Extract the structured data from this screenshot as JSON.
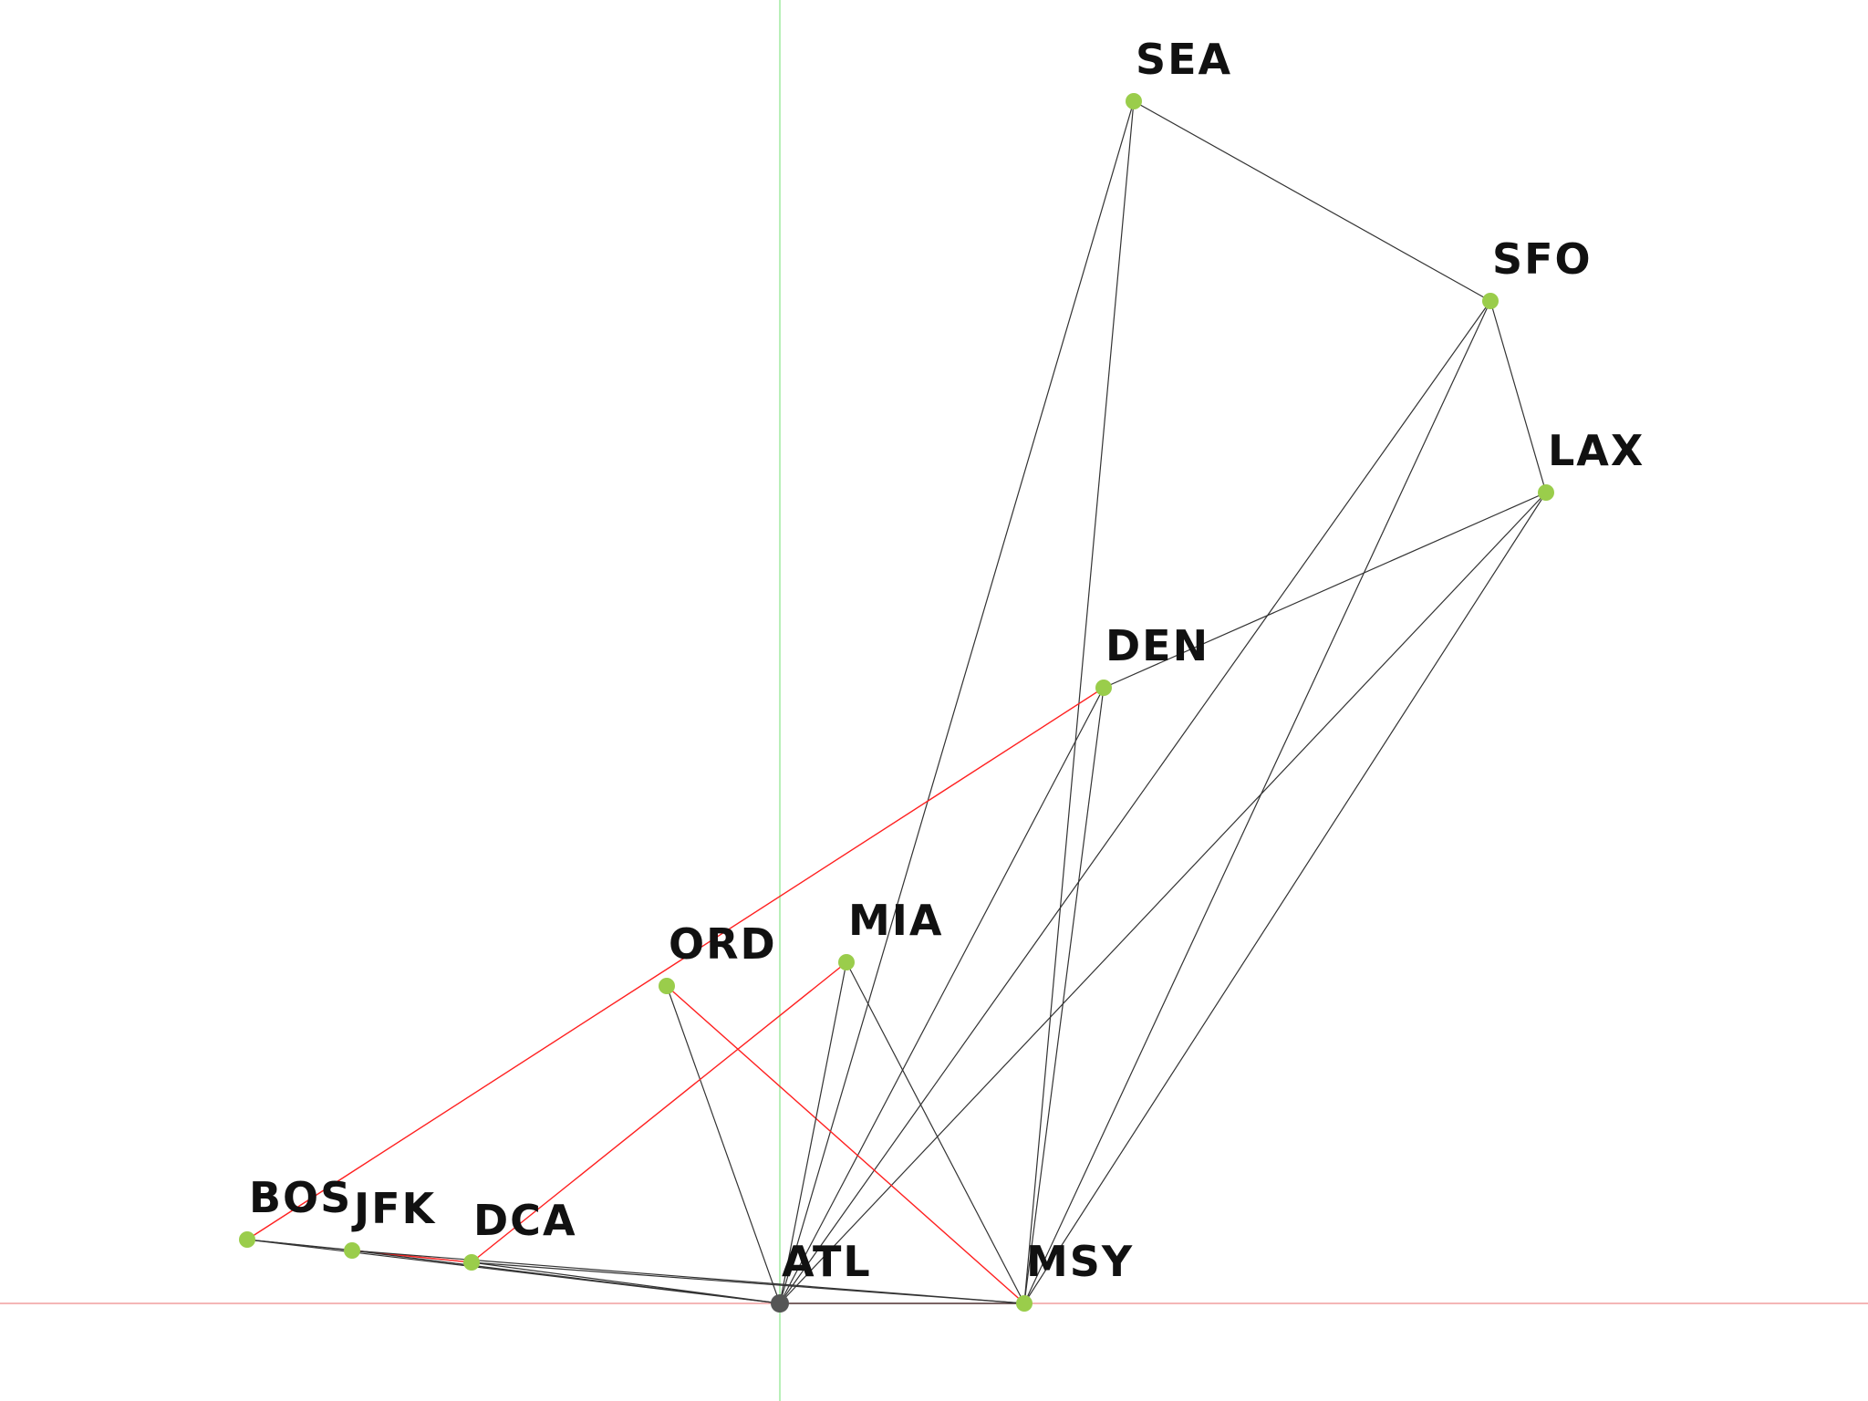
{
  "colors": {
    "background": "#ffffff",
    "axis_x": "#f4b6b6",
    "axis_y": "#b8f0b8",
    "node": "#9acd4b",
    "origin_node": "#555555",
    "edge_default": "#333333",
    "edge_highlight": "#ff2020",
    "label": "#111111"
  },
  "nodes": [
    {
      "id": "SEA",
      "label": "SEA",
      "kind": "airport"
    },
    {
      "id": "SFO",
      "label": "SFO",
      "kind": "airport"
    },
    {
      "id": "LAX",
      "label": "LAX",
      "kind": "airport"
    },
    {
      "id": "DEN",
      "label": "DEN",
      "kind": "airport"
    },
    {
      "id": "ORD",
      "label": "ORD",
      "kind": "airport"
    },
    {
      "id": "MIA",
      "label": "MIA",
      "kind": "airport"
    },
    {
      "id": "BOS",
      "label": "BOS",
      "kind": "airport"
    },
    {
      "id": "JFK",
      "label": "JFK",
      "kind": "airport"
    },
    {
      "id": "DCA",
      "label": "DCA",
      "kind": "airport"
    },
    {
      "id": "ATL",
      "label": "ATL",
      "kind": "origin"
    },
    {
      "id": "MSY",
      "label": "MSY",
      "kind": "airport"
    }
  ],
  "edges": [
    {
      "from": "SEA",
      "to": "SFO",
      "highlight": false
    },
    {
      "from": "SEA",
      "to": "ATL",
      "highlight": false
    },
    {
      "from": "SEA",
      "to": "MSY",
      "highlight": false
    },
    {
      "from": "SFO",
      "to": "LAX",
      "highlight": false
    },
    {
      "from": "SFO",
      "to": "ATL",
      "highlight": false
    },
    {
      "from": "SFO",
      "to": "MSY",
      "highlight": false
    },
    {
      "from": "LAX",
      "to": "DEN",
      "highlight": false
    },
    {
      "from": "LAX",
      "to": "ATL",
      "highlight": false
    },
    {
      "from": "LAX",
      "to": "MSY",
      "highlight": false
    },
    {
      "from": "DEN",
      "to": "ATL",
      "highlight": false
    },
    {
      "from": "DEN",
      "to": "MSY",
      "highlight": false
    },
    {
      "from": "DEN",
      "to": "BOS",
      "highlight": true
    },
    {
      "from": "ORD",
      "to": "ATL",
      "highlight": false
    },
    {
      "from": "ORD",
      "to": "MSY",
      "highlight": true
    },
    {
      "from": "MIA",
      "to": "ATL",
      "highlight": false
    },
    {
      "from": "MIA",
      "to": "MSY",
      "highlight": false
    },
    {
      "from": "MIA",
      "to": "DCA",
      "highlight": true
    },
    {
      "from": "BOS",
      "to": "JFK",
      "highlight": false
    },
    {
      "from": "BOS",
      "to": "DCA",
      "highlight": false
    },
    {
      "from": "BOS",
      "to": "ATL",
      "highlight": false
    },
    {
      "from": "JFK",
      "to": "DCA",
      "highlight": true
    },
    {
      "from": "JFK",
      "to": "ATL",
      "highlight": false
    },
    {
      "from": "JFK",
      "to": "MSY",
      "highlight": false
    },
    {
      "from": "DCA",
      "to": "ATL",
      "highlight": false
    },
    {
      "from": "DCA",
      "to": "MSY",
      "highlight": false
    },
    {
      "from": "ATL",
      "to": "MSY",
      "highlight": false
    }
  ]
}
